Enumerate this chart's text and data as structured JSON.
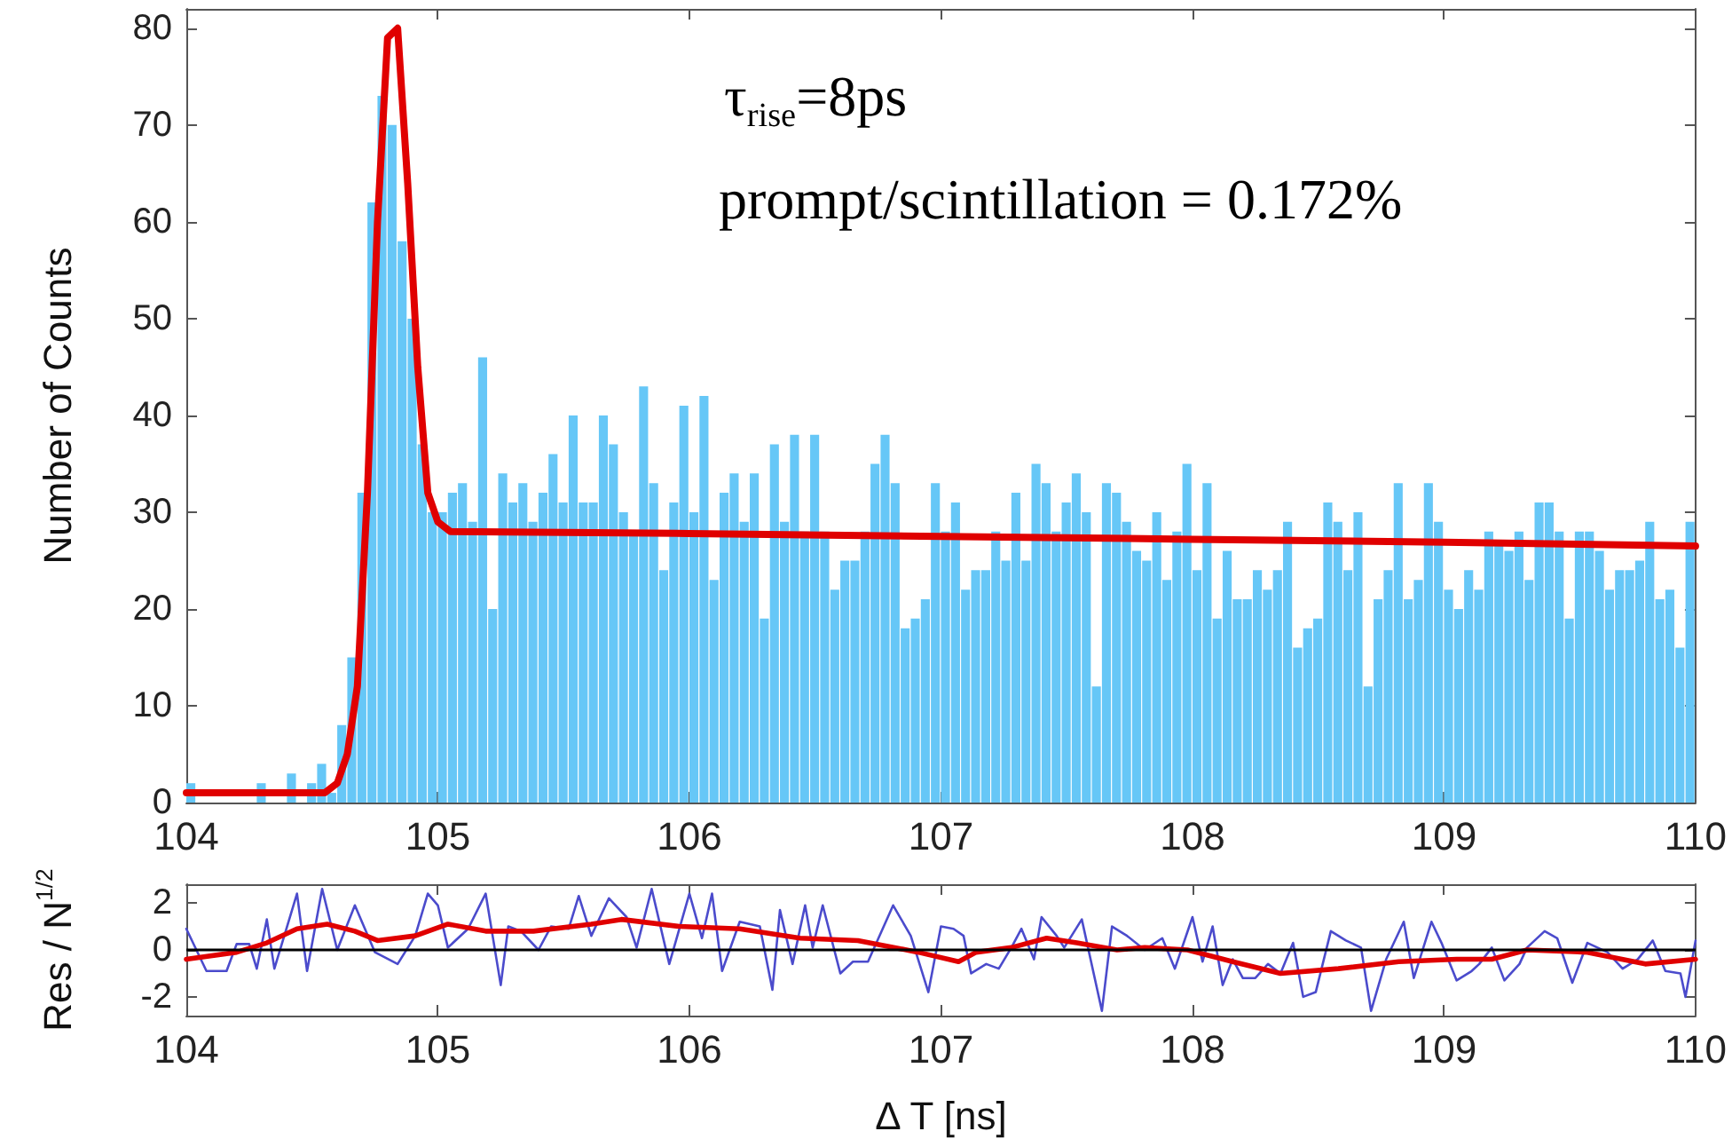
{
  "chart_data": [
    {
      "type": "histogram",
      "ylabel": "Number of Counts",
      "annotations": [
        "τ$_{rise}$=8ps",
        "prompt/scintillation = 0.172%"
      ],
      "xlim": [
        104,
        110
      ],
      "xticks": [
        104,
        105,
        106,
        107,
        108,
        109,
        110
      ],
      "ylim": [
        0,
        82
      ],
      "yticks": [
        0,
        10,
        20,
        30,
        40,
        50,
        60,
        70,
        80
      ],
      "marker": "none",
      "bins": [
        104,
        104.04,
        104.08,
        104.12,
        104.16,
        104.2,
        104.24,
        104.28,
        104.32,
        104.36,
        104.4,
        104.44,
        104.48,
        104.52,
        104.56,
        104.6,
        104.64,
        104.68,
        104.72,
        104.76,
        104.8,
        104.84,
        104.88,
        104.92,
        104.96,
        105,
        105.04,
        105.08,
        105.12,
        105.16,
        105.2,
        105.24,
        105.28,
        105.32,
        105.36,
        105.4,
        105.44,
        105.48,
        105.52,
        105.56,
        105.6,
        105.64,
        105.68,
        105.72,
        105.76,
        105.8,
        105.84,
        105.88,
        105.92,
        105.96,
        106,
        106.04,
        106.08,
        106.12,
        106.16,
        106.2,
        106.24,
        106.28,
        106.32,
        106.36,
        106.4,
        106.44,
        106.48,
        106.52,
        106.56,
        106.6,
        106.64,
        106.68,
        106.72,
        106.76,
        106.8,
        106.84,
        106.88,
        106.92,
        106.96,
        107,
        107.04,
        107.08,
        107.12,
        107.16,
        107.2,
        107.24,
        107.28,
        107.32,
        107.36,
        107.4,
        107.44,
        107.48,
        107.52,
        107.56,
        107.6,
        107.64,
        107.68,
        107.72,
        107.76,
        107.8,
        107.84,
        107.88,
        107.92,
        107.96,
        108,
        108.04,
        108.08,
        108.12,
        108.16,
        108.2,
        108.24,
        108.28,
        108.32,
        108.36,
        108.4,
        108.44,
        108.48,
        108.52,
        108.56,
        108.6,
        108.64,
        108.68,
        108.72,
        108.76,
        108.8,
        108.84,
        108.88,
        108.92,
        108.96,
        109,
        109.04,
        109.08,
        109.12,
        109.16,
        109.2,
        109.24,
        109.28,
        109.32,
        109.36,
        109.4,
        109.44,
        109.48,
        109.52,
        109.56,
        109.6,
        109.64,
        109.68,
        109.72,
        109.76,
        109.8,
        109.84,
        109.88,
        109.92,
        109.96,
        110
      ],
      "series": [
        {
          "color": "#66c7f7",
          "values": [
            2,
            0,
            0,
            0,
            0,
            0,
            0,
            2,
            0,
            0,
            3,
            0,
            2,
            4,
            1,
            8,
            15,
            32,
            62,
            73,
            70,
            58,
            50,
            37,
            30,
            30,
            32,
            33,
            29,
            46,
            20,
            34,
            31,
            33,
            29,
            32,
            36,
            31,
            40,
            31,
            31,
            40,
            37,
            30,
            28,
            43,
            33,
            24,
            31,
            41,
            30,
            42,
            23,
            32,
            34,
            29,
            34,
            19,
            37,
            29,
            38,
            28,
            38,
            28,
            22,
            25,
            25,
            28,
            35,
            38,
            33,
            18,
            19,
            21,
            33,
            28,
            31,
            22,
            24,
            24,
            28,
            25,
            32,
            25,
            35,
            33,
            28,
            31,
            34,
            30,
            12,
            33,
            32,
            29,
            26,
            25,
            30,
            23,
            28,
            35,
            24,
            33,
            19,
            26,
            21,
            21,
            24,
            22,
            24,
            29,
            16,
            18,
            19,
            31,
            29,
            24,
            30,
            12,
            21,
            24,
            33,
            21,
            23,
            33,
            29,
            22,
            20,
            24,
            22,
            28,
            27,
            26,
            28,
            23,
            31,
            31,
            28,
            19,
            28,
            28,
            26,
            22,
            24,
            24,
            25,
            29,
            21,
            22,
            16,
            29
          ]
        },
        {
          "type": "line",
          "color": "#e00000",
          "x": [
            104,
            104.55,
            104.6,
            104.64,
            104.68,
            104.72,
            104.76,
            104.8,
            104.84,
            104.88,
            104.92,
            104.96,
            105,
            105.05,
            106,
            107,
            108,
            109,
            110
          ],
          "values": [
            1,
            1,
            2,
            5,
            12,
            32,
            60,
            79,
            80,
            64,
            45,
            32,
            29,
            28,
            27.8,
            27.5,
            27.2,
            26.9,
            26.5
          ]
        }
      ]
    },
    {
      "type": "line",
      "xlabel": "Δ T [ns]",
      "ylabel": "Res / N$^{1/2}$",
      "xlim": [
        104,
        110
      ],
      "xticks": [
        104,
        105,
        106,
        107,
        108,
        109,
        110
      ],
      "ylim": [
        -2.8,
        2.8
      ],
      "yticks": [
        -2,
        0,
        2
      ],
      "marker": "none",
      "ref_lines": [
        {
          "axis": "y",
          "value": 0,
          "color": "#000000"
        }
      ],
      "series": [
        {
          "color": "#4b4bcc",
          "x": [
            104,
            104.08,
            104.16,
            104.2,
            104.25,
            104.28,
            104.32,
            104.35,
            104.44,
            104.48,
            104.54,
            104.6,
            104.67,
            104.75,
            104.84,
            104.91,
            104.96,
            105,
            105.04,
            105.12,
            105.19,
            105.25,
            105.28,
            105.33,
            105.4,
            105.45,
            105.52,
            105.56,
            105.61,
            105.68,
            105.75,
            105.79,
            105.85,
            105.92,
            106,
            106.05,
            106.09,
            106.13,
            106.2,
            106.28,
            106.33,
            106.36,
            106.41,
            106.46,
            106.49,
            106.53,
            106.6,
            106.65,
            106.71,
            106.81,
            106.88,
            106.95,
            107,
            107.05,
            107.09,
            107.12,
            107.18,
            107.23,
            107.28,
            107.32,
            107.37,
            107.4,
            107.46,
            107.49,
            107.56,
            107.64,
            107.68,
            107.74,
            107.81,
            107.88,
            107.93,
            108,
            108.04,
            108.08,
            108.12,
            108.16,
            108.2,
            108.25,
            108.3,
            108.35,
            108.4,
            108.44,
            108.49,
            108.55,
            108.61,
            108.67,
            108.71,
            108.77,
            108.84,
            108.88,
            108.95,
            108.99,
            109.05,
            109.11,
            109.14,
            109.19,
            109.24,
            109.3,
            109.33,
            109.4,
            109.45,
            109.51,
            109.57,
            109.65,
            109.71,
            109.77,
            109.83,
            109.88,
            109.94,
            109.96,
            110
          ],
          "values": [
            0.9,
            -0.9,
            -0.9,
            0.25,
            0.25,
            -0.8,
            1.3,
            -0.8,
            2.4,
            -0.9,
            2.6,
            0,
            1.9,
            -0.1,
            -0.6,
            0.6,
            2.4,
            1.9,
            0.1,
            0.9,
            2.4,
            -1.5,
            1,
            0.8,
            0,
            1,
            0.9,
            2.3,
            0.6,
            2.2,
            1.4,
            0.1,
            2.6,
            -0.6,
            2.4,
            0.5,
            2.4,
            -0.9,
            1.2,
            1,
            -1.7,
            1.7,
            -0.6,
            1.9,
            0.1,
            1.9,
            -1,
            -0.5,
            -0.5,
            1.9,
            0.6,
            -1.8,
            1,
            0.9,
            0.6,
            -1,
            -0.6,
            -0.8,
            0.1,
            0.9,
            -0.4,
            1.4,
            0.6,
            0.1,
            1.3,
            -2.6,
            1,
            0.6,
            0,
            0.5,
            -0.8,
            1.4,
            -0.5,
            1,
            -1.5,
            -0.4,
            -1.2,
            -1.2,
            -0.6,
            -1,
            0.3,
            -2,
            -1.8,
            0.8,
            0.4,
            0.1,
            -2.6,
            -0.4,
            1.2,
            -1.2,
            1.2,
            0.3,
            -1.3,
            -0.9,
            -0.6,
            0.1,
            -1.3,
            -0.6,
            0.1,
            0.8,
            0.5,
            -1.4,
            0.3,
            -0.1,
            -0.8,
            -0.4,
            0.4,
            -0.9,
            -1,
            -2,
            0.4
          ]
        },
        {
          "color": "#e00000",
          "x": [
            104,
            104.2,
            104.32,
            104.44,
            104.56,
            104.67,
            104.76,
            104.91,
            105.04,
            105.19,
            105.38,
            105.61,
            105.73,
            105.96,
            106.2,
            106.44,
            106.67,
            106.91,
            107.07,
            107.14,
            107.28,
            107.42,
            107.54,
            107.7,
            107.81,
            107.98,
            108.16,
            108.35,
            108.58,
            108.82,
            109.05,
            109.19,
            109.33,
            109.57,
            109.8,
            110
          ],
          "values": [
            -0.4,
            -0.1,
            0.3,
            0.9,
            1.1,
            0.8,
            0.4,
            0.6,
            1.1,
            0.8,
            0.8,
            1.1,
            1.3,
            1,
            0.9,
            0.5,
            0.4,
            -0.1,
            -0.5,
            -0.1,
            0.1,
            0.5,
            0.3,
            0,
            0.1,
            0,
            -0.5,
            -1,
            -0.8,
            -0.5,
            -0.4,
            -0.4,
            0,
            -0.1,
            -0.6,
            -0.4
          ]
        }
      ]
    }
  ]
}
